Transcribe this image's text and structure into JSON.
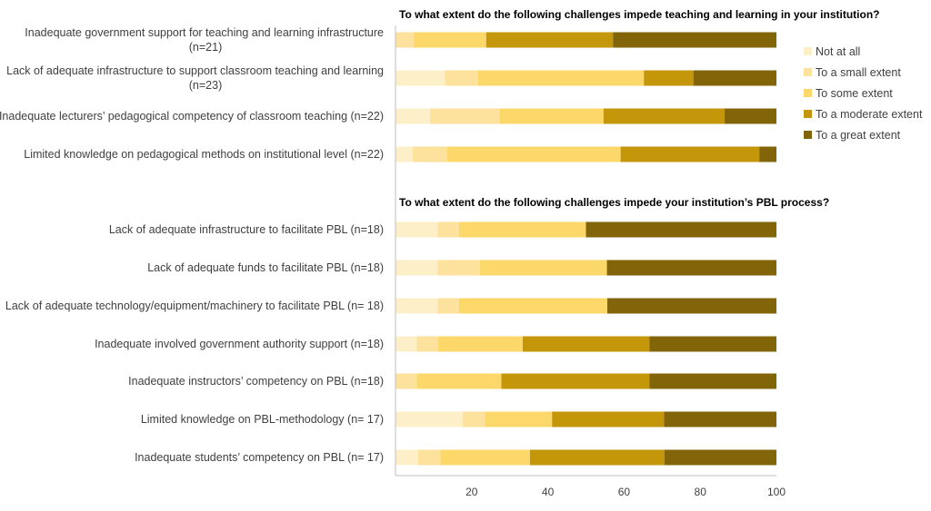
{
  "chart_data": {
    "type": "bar",
    "orientation": "horizontal",
    "stacked": true,
    "xlim": [
      0,
      100
    ],
    "xticks": [
      20,
      40,
      60,
      80,
      100
    ],
    "grid": false,
    "legend_position": "right",
    "series_names": [
      "Not at all",
      "To a small extent",
      "To some extent",
      "To a moderate extent",
      "To a great extent"
    ],
    "colors": [
      "#FDF0C8",
      "#FCE29C",
      "#FCD86A",
      "#C4960A",
      "#826508"
    ],
    "panels": [
      {
        "title": "To what extent do the following challenges impede teaching and learning in your institution?",
        "categories": [
          [
            "Inadequate government support for teaching and learning infrastructure",
            "(n=21)"
          ],
          [
            "Lack of adequate infrastructure to support classroom teaching and learning",
            "(n=23)"
          ],
          [
            "Inadequate lecturers’ pedagogical competency of classroom teaching (n=22)"
          ],
          [
            "Limited knowledge on pedagogical methods on institutional level (n=22)"
          ]
        ],
        "values": [
          [
            0,
            4.8,
            19.0,
            33.3,
            42.9
          ],
          [
            13.0,
            8.7,
            43.5,
            13.0,
            21.8
          ],
          [
            9.1,
            18.2,
            27.3,
            31.8,
            13.6
          ],
          [
            4.5,
            9.1,
            45.5,
            36.4,
            4.5
          ]
        ]
      },
      {
        "title": "To what extent do the following challenges impede your institution’s PBL process?",
        "categories": [
          [
            "Lack of adequate infrastructure to facilitate PBL (n=18)"
          ],
          [
            "Lack of adequate funds to facilitate PBL (n=18)"
          ],
          [
            "Lack of adequate technology/equipment/machinery to facilitate PBL (n= 18)"
          ],
          [
            "Inadequate involved government authority support (n=18)"
          ],
          [
            "Inadequate instructors’ competency on PBL (n=18)"
          ],
          [
            "Limited knowledge on PBL-methodology (n= 17)"
          ],
          [
            "Inadequate students’ competency on PBL (n= 17)"
          ]
        ],
        "values": [
          [
            11.1,
            5.6,
            33.3,
            0,
            50.0
          ],
          [
            11.1,
            11.1,
            33.3,
            0,
            44.5
          ],
          [
            11.1,
            5.6,
            38.9,
            0,
            44.4
          ],
          [
            5.6,
            5.6,
            22.2,
            33.3,
            33.3
          ],
          [
            0,
            5.6,
            22.2,
            38.9,
            33.3
          ],
          [
            17.6,
            5.9,
            17.6,
            29.4,
            29.5
          ],
          [
            5.9,
            5.9,
            23.5,
            35.3,
            29.4
          ]
        ]
      }
    ]
  }
}
